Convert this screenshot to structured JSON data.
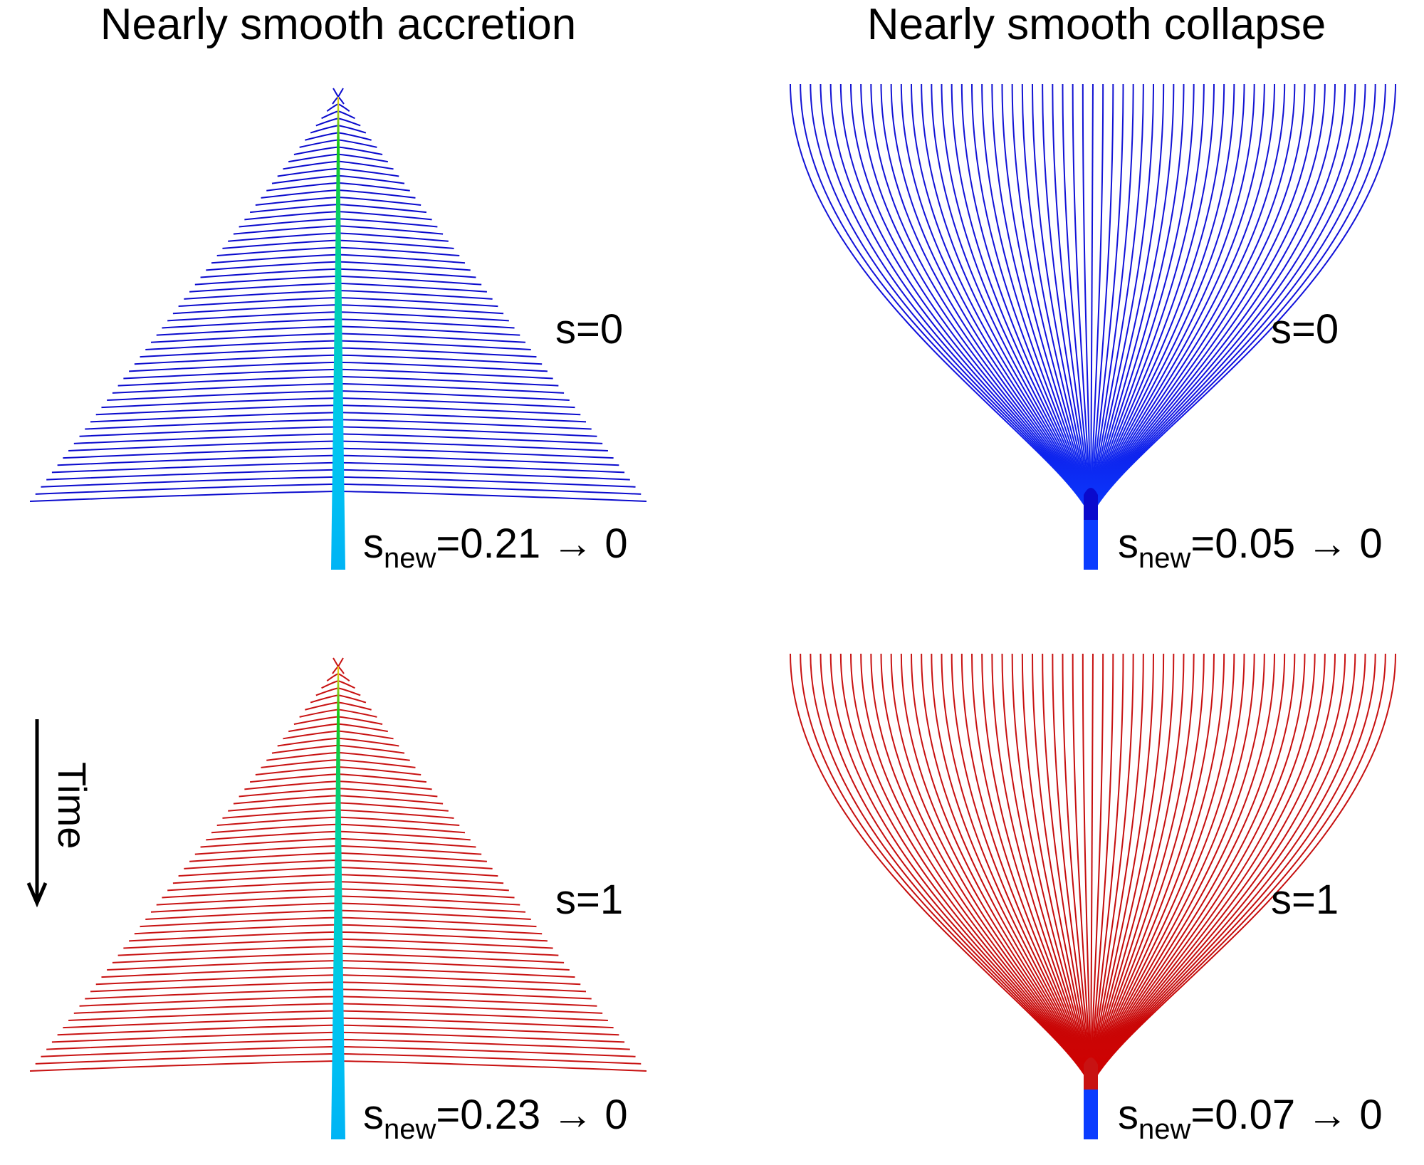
{
  "columns": {
    "left_title": "Nearly smooth accretion",
    "right_title": "Nearly smooth collapse"
  },
  "time_axis": {
    "label": "Time",
    "icon": "arrow-down-icon"
  },
  "panels": {
    "top_left": {
      "kind": "accretion",
      "s_label": "s=0",
      "snew_prefix": "s",
      "snew_sub": "new",
      "snew_value": "=0.21 → 0",
      "branch_color": "#0a0acd",
      "branch_count": 56
    },
    "top_right": {
      "kind": "collapse",
      "s_label": "s=0",
      "snew_prefix": "s",
      "snew_sub": "new",
      "snew_value": "=0.05 → 0",
      "branch_color": "#0a0acd",
      "branch_count": 61
    },
    "bottom_left": {
      "kind": "accretion",
      "s_label": "s=1",
      "snew_prefix": "s",
      "snew_sub": "new",
      "snew_value": "=0.23 → 0",
      "branch_color": "#c81212",
      "branch_count": 56
    },
    "bottom_right": {
      "kind": "collapse",
      "s_label": "s=1",
      "snew_prefix": "s",
      "snew_sub": "new",
      "snew_value": "=0.07 → 0",
      "branch_color": "#c81212",
      "branch_count": 61
    }
  },
  "colors": {
    "trunk_stem_top": "#f2d21a",
    "trunk_stem_mid": "#14c814",
    "trunk_stem_bottom": "#00c0f0",
    "collapse_trunk": "#0a3cff",
    "text": "#000000"
  }
}
